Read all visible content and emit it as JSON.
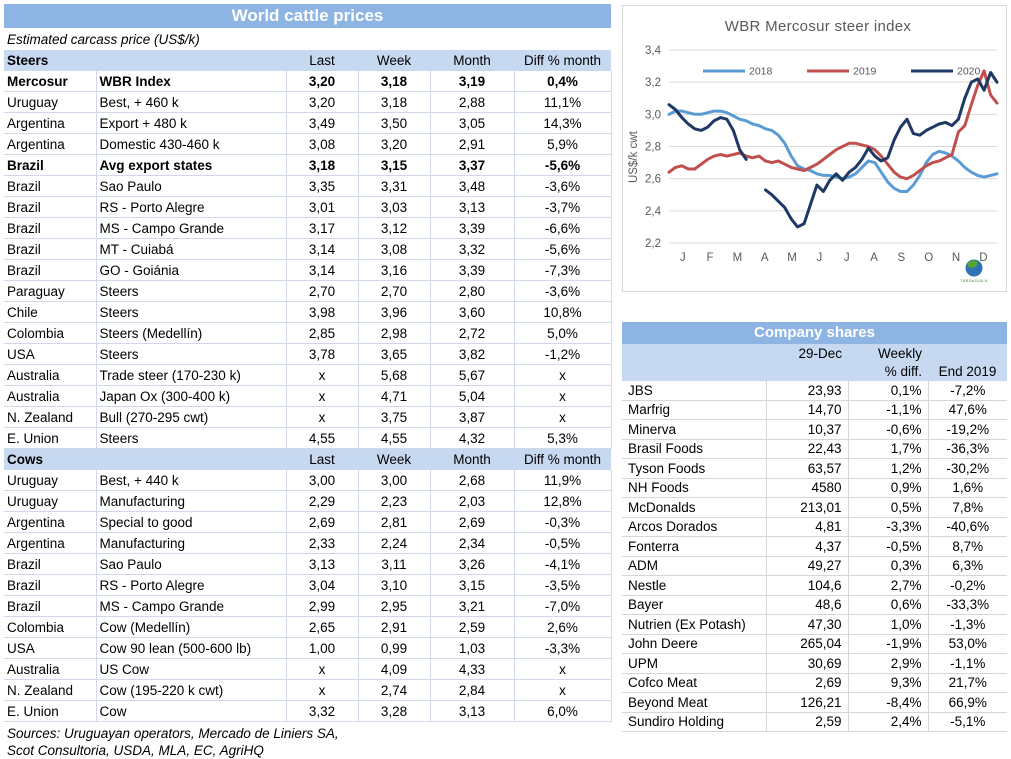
{
  "colors": {
    "band_blue": "#8DB4E2",
    "band_light_blue": "#C6D9F1",
    "grid_gray": "#D9D9D9",
    "chart_text_gray": "#595959",
    "series_2018": "#5B9BD5",
    "series_2019": "#C0504D",
    "series_2020": "#1F3864"
  },
  "cattle_table": {
    "title": "World cattle prices",
    "subtitle": "Estimated carcass price (US$/k)",
    "col_headers": [
      "Last",
      "Week",
      "Month",
      "Diff % month"
    ],
    "sections": [
      {
        "name": "Steers",
        "rows": [
          {
            "country": "Mercosur",
            "desc": "WBR Index",
            "last": "3,20",
            "week": "3,18",
            "month": "3,19",
            "diff": "0,4%",
            "bold": true
          },
          {
            "country": "Uruguay",
            "desc": "Best, + 460 k",
            "last": "3,20",
            "week": "3,18",
            "month": "2,88",
            "diff": "11,1%",
            "bold": false
          },
          {
            "country": "Argentina",
            "desc": "Export + 480 k",
            "last": "3,49",
            "week": "3,50",
            "month": "3,05",
            "diff": "14,3%",
            "bold": false
          },
          {
            "country": "Argentina",
            "desc": "Domestic 430-460 k",
            "last": "3,08",
            "week": "3,20",
            "month": "2,91",
            "diff": "5,9%",
            "bold": false
          },
          {
            "country": "Brazil",
            "desc": "Avg export states",
            "last": "3,18",
            "week": "3,15",
            "month": "3,37",
            "diff": "-5,6%",
            "bold": true
          },
          {
            "country": "Brazil",
            "desc": "Sao Paulo",
            "last": "3,35",
            "week": "3,31",
            "month": "3,48",
            "diff": "-3,6%",
            "bold": false
          },
          {
            "country": "Brazil",
            "desc": "RS - Porto Alegre",
            "last": "3,01",
            "week": "3,03",
            "month": "3,13",
            "diff": "-3,7%",
            "bold": false
          },
          {
            "country": "Brazil",
            "desc": "MS - Campo Grande",
            "last": "3,17",
            "week": "3,12",
            "month": "3,39",
            "diff": "-6,6%",
            "bold": false
          },
          {
            "country": "Brazil",
            "desc": "MT - Cuiabá",
            "last": "3,14",
            "week": "3,08",
            "month": "3,32",
            "diff": "-5,6%",
            "bold": false
          },
          {
            "country": "Brazil",
            "desc": "GO - Goiánia",
            "last": "3,14",
            "week": "3,16",
            "month": "3,39",
            "diff": "-7,3%",
            "bold": false
          },
          {
            "country": "Paraguay",
            "desc": "Steers",
            "last": "2,70",
            "week": "2,70",
            "month": "2,80",
            "diff": "-3,6%",
            "bold": false
          },
          {
            "country": "Chile",
            "desc": "Steers",
            "last": "3,98",
            "week": "3,96",
            "month": "3,60",
            "diff": "10,8%",
            "bold": false
          },
          {
            "country": "Colombia",
            "desc": "Steers (Medellín)",
            "last": "2,85",
            "week": "2,98",
            "month": "2,72",
            "diff": "5,0%",
            "bold": false
          },
          {
            "country": "USA",
            "desc": "Steers",
            "last": "3,78",
            "week": "3,65",
            "month": "3,82",
            "diff": "-1,2%",
            "bold": false
          },
          {
            "country": "Australia",
            "desc": "Trade steer (170-230 k)",
            "last": "x",
            "week": "5,68",
            "month": "5,67",
            "diff": "x",
            "bold": false
          },
          {
            "country": "Australia",
            "desc": "Japan Ox (300-400 k)",
            "last": "x",
            "week": "4,71",
            "month": "5,04",
            "diff": "x",
            "bold": false
          },
          {
            "country": "N. Zealand",
            "desc": "Bull (270-295 cwt)",
            "last": "x",
            "week": "3,75",
            "month": "3,87",
            "diff": "x",
            "bold": false
          },
          {
            "country": "E. Union",
            "desc": "Steers",
            "last": "4,55",
            "week": "4,55",
            "month": "4,32",
            "diff": "5,3%",
            "bold": false
          }
        ]
      },
      {
        "name": "Cows",
        "rows": [
          {
            "country": "Uruguay",
            "desc": "Best, + 440 k",
            "last": "3,00",
            "week": "3,00",
            "month": "2,68",
            "diff": "11,9%",
            "bold": false
          },
          {
            "country": "Uruguay",
            "desc": "Manufacturing",
            "last": "2,29",
            "week": "2,23",
            "month": "2,03",
            "diff": "12,8%",
            "bold": false
          },
          {
            "country": "Argentina",
            "desc": "Special to good",
            "last": "2,69",
            "week": "2,81",
            "month": "2,69",
            "diff": "-0,3%",
            "bold": false
          },
          {
            "country": "Argentina",
            "desc": "Manufacturing",
            "last": "2,33",
            "week": "2,24",
            "month": "2,34",
            "diff": "-0,5%",
            "bold": false
          },
          {
            "country": "Brazil",
            "desc": "Sao Paulo",
            "last": "3,13",
            "week": "3,11",
            "month": "3,26",
            "diff": "-4,1%",
            "bold": false
          },
          {
            "country": "Brazil",
            "desc": "RS - Porto Alegre",
            "last": "3,04",
            "week": "3,10",
            "month": "3,15",
            "diff": "-3,5%",
            "bold": false
          },
          {
            "country": "Brazil",
            "desc": "MS - Campo Grande",
            "last": "2,99",
            "week": "2,95",
            "month": "3,21",
            "diff": "-7,0%",
            "bold": false
          },
          {
            "country": "Colombia",
            "desc": "Cow (Medellín)",
            "last": "2,65",
            "week": "2,91",
            "month": "2,59",
            "diff": "2,6%",
            "bold": false
          },
          {
            "country": "USA",
            "desc": "Cow 90 lean (500-600 lb)",
            "last": "1,00",
            "week": "0,99",
            "month": "1,03",
            "diff": "-3,3%",
            "bold": false
          },
          {
            "country": "Australia",
            "desc": "US Cow",
            "last": "x",
            "week": "4,09",
            "month": "4,33",
            "diff": "x",
            "bold": false
          },
          {
            "country": "N. Zealand",
            "desc": "Cow (195-220 k cwt)",
            "last": "x",
            "week": "2,74",
            "month": "2,84",
            "diff": "x",
            "bold": false
          },
          {
            "country": "E. Union",
            "desc": "Cow",
            "last": "3,32",
            "week": "3,28",
            "month": "3,13",
            "diff": "6,0%",
            "bold": false
          }
        ]
      }
    ],
    "sources": [
      "Sources: Uruguayan operators, Mercado de Liniers SA,",
      "Scot Consultoria, USDA, MLA, EC, AgriHQ"
    ]
  },
  "chart_data": {
    "type": "line",
    "title": "WBR Mercosur steer index",
    "ylabel": "US$/k cwt",
    "ylim": [
      2.2,
      3.4
    ],
    "ytick_labels": [
      "3,4",
      "3,2",
      "3,0",
      "2,8",
      "2,6",
      "2,4",
      "2,2"
    ],
    "x_labels": [
      "J",
      "F",
      "M",
      "A",
      "M",
      "J",
      "J",
      "A",
      "S",
      "O",
      "N",
      "D"
    ],
    "grid": true,
    "legend_position": "top",
    "logo": "TARDAGUILA",
    "series": [
      {
        "name": "2018",
        "color": "#5B9BD5",
        "values": [
          3.0,
          3.02,
          3.02,
          3.01,
          3.0,
          3.0,
          3.01,
          3.02,
          3.02,
          3.01,
          2.99,
          2.97,
          2.96,
          2.94,
          2.93,
          2.91,
          2.9,
          2.87,
          2.82,
          2.74,
          2.68,
          2.66,
          2.65,
          2.63,
          2.62,
          2.62,
          2.61,
          2.6,
          2.61,
          2.63,
          2.67,
          2.71,
          2.7,
          2.64,
          2.58,
          2.54,
          2.52,
          2.52,
          2.56,
          2.62,
          2.7,
          2.75,
          2.77,
          2.76,
          2.74,
          2.71,
          2.67,
          2.64,
          2.62,
          2.61,
          2.62,
          2.63
        ]
      },
      {
        "name": "2019",
        "color": "#C0504D",
        "values": [
          2.64,
          2.67,
          2.68,
          2.66,
          2.66,
          2.69,
          2.72,
          2.74,
          2.75,
          2.74,
          2.75,
          2.76,
          2.74,
          2.73,
          2.74,
          2.71,
          2.7,
          2.71,
          2.69,
          2.67,
          2.66,
          2.65,
          2.67,
          2.69,
          2.72,
          2.75,
          2.78,
          2.8,
          2.82,
          2.82,
          2.81,
          2.8,
          2.78,
          2.74,
          2.69,
          2.64,
          2.61,
          2.6,
          2.62,
          2.65,
          2.68,
          2.7,
          2.71,
          2.73,
          2.75,
          2.89,
          2.93,
          3.06,
          3.18,
          3.27,
          3.12,
          3.07
        ]
      },
      {
        "name": "2020",
        "color": "#1F3864",
        "values": [
          3.06,
          3.03,
          2.98,
          2.94,
          2.91,
          2.9,
          2.92,
          2.96,
          2.98,
          2.97,
          2.9,
          2.78,
          2.72,
          null,
          null,
          2.53,
          2.5,
          2.46,
          2.42,
          2.35,
          2.3,
          2.32,
          2.44,
          2.56,
          2.52,
          2.59,
          2.63,
          2.59,
          2.64,
          2.67,
          2.72,
          2.79,
          2.74,
          2.71,
          2.73,
          2.84,
          2.92,
          2.97,
          2.88,
          2.87,
          2.9,
          2.92,
          2.94,
          2.95,
          2.93,
          2.97,
          3.1,
          3.2,
          3.22,
          3.15,
          3.26,
          3.2
        ]
      }
    ]
  },
  "company_table": {
    "title": "Company shares",
    "headers": {
      "date": "29-Dec",
      "weekly_top": "Weekly",
      "weekly_bottom": "% diff.",
      "end": "End 2019"
    },
    "rows": [
      {
        "name": "JBS",
        "price": "23,93",
        "weekly": "0,1%",
        "end": "-7,2%"
      },
      {
        "name": "Marfrig",
        "price": "14,70",
        "weekly": "-1,1%",
        "end": "47,6%"
      },
      {
        "name": "Minerva",
        "price": "10,37",
        "weekly": "-0,6%",
        "end": "-19,2%"
      },
      {
        "name": "Brasil Foods",
        "price": "22,43",
        "weekly": "1,7%",
        "end": "-36,3%"
      },
      {
        "name": "Tyson Foods",
        "price": "63,57",
        "weekly": "1,2%",
        "end": "-30,2%"
      },
      {
        "name": "NH Foods",
        "price": "4580",
        "weekly": "0,9%",
        "end": "1,6%"
      },
      {
        "name": "McDonalds",
        "price": "213,01",
        "weekly": "0,5%",
        "end": "7,8%"
      },
      {
        "name": "Arcos Dorados",
        "price": "4,81",
        "weekly": "-3,3%",
        "end": "-40,6%"
      },
      {
        "name": "Fonterra",
        "price": "4,37",
        "weekly": "-0,5%",
        "end": "8,7%"
      },
      {
        "name": "ADM",
        "price": "49,27",
        "weekly": "0,3%",
        "end": "6,3%"
      },
      {
        "name": "Nestle",
        "price": "104,6",
        "weekly": "2,7%",
        "end": "-0,2%"
      },
      {
        "name": "Bayer",
        "price": "48,6",
        "weekly": "0,6%",
        "end": "-33,3%"
      },
      {
        "name": "Nutrien (Ex Potash)",
        "price": "47,30",
        "weekly": "1,0%",
        "end": "-1,3%"
      },
      {
        "name": "John Deere",
        "price": "265,04",
        "weekly": "-1,9%",
        "end": "53,0%"
      },
      {
        "name": "UPM",
        "price": "30,69",
        "weekly": "2,9%",
        "end": "-1,1%"
      },
      {
        "name": "Cofco Meat",
        "price": "2,69",
        "weekly": "9,3%",
        "end": "21,7%"
      },
      {
        "name": "Beyond Meat",
        "price": "126,21",
        "weekly": "-8,4%",
        "end": "66,9%"
      },
      {
        "name": "Sundiro Holding",
        "price": "2,59",
        "weekly": "2,4%",
        "end": "-5,1%"
      }
    ]
  }
}
